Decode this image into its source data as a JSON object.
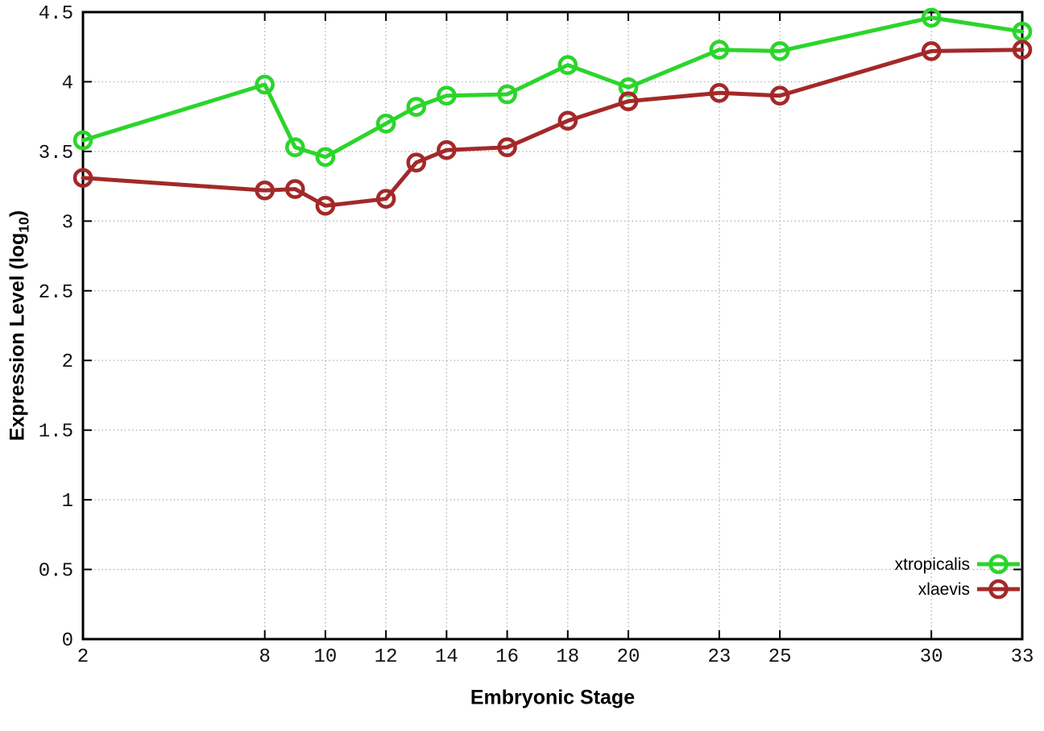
{
  "chart_data": {
    "type": "line",
    "title": "",
    "xlabel": "Embryonic Stage",
    "ylabel": "Expression Level (log10)",
    "ylabel_rich": {
      "main": "Expression Level (log",
      "sub": "10",
      "close": ")"
    },
    "xlim": [
      2,
      33
    ],
    "ylim": [
      0,
      4.5
    ],
    "grid": true,
    "grid_style": "dotted",
    "legend_position": "bottom-right-inside",
    "x_ticks": [
      2,
      8,
      10,
      12,
      14,
      16,
      18,
      20,
      23,
      25,
      30,
      33
    ],
    "x_tick_labels": [
      "2",
      "8",
      "10",
      "12",
      "14",
      "16",
      "18",
      "20",
      "23",
      "25",
      "30",
      "33"
    ],
    "y_ticks": [
      0,
      0.5,
      1,
      1.5,
      2,
      2.5,
      3,
      3.5,
      4,
      4.5
    ],
    "y_tick_labels": [
      "0",
      "0.5",
      "1",
      "1.5",
      "2",
      "2.5",
      "3",
      "3.5",
      "4",
      "4.5"
    ],
    "x": [
      2,
      8,
      9,
      10,
      12,
      13,
      14,
      16,
      18,
      20,
      23,
      25,
      30,
      33
    ],
    "series": [
      {
        "name": "xtropicalis",
        "color": "#2bd52b",
        "marker": "open-circle",
        "values": [
          3.58,
          3.98,
          3.53,
          3.46,
          3.7,
          3.82,
          3.9,
          3.91,
          4.12,
          3.96,
          4.23,
          4.22,
          4.46,
          4.36
        ]
      },
      {
        "name": "xlaevis",
        "color": "#a32929",
        "marker": "open-circle",
        "values": [
          3.31,
          3.22,
          3.23,
          3.11,
          3.16,
          3.42,
          3.51,
          3.53,
          3.72,
          3.86,
          3.92,
          3.9,
          4.22,
          4.23
        ]
      }
    ],
    "colors": {
      "border": "#000000",
      "grid": "#b3b3b3",
      "tick_text": "#111111",
      "background": "#ffffff"
    }
  }
}
